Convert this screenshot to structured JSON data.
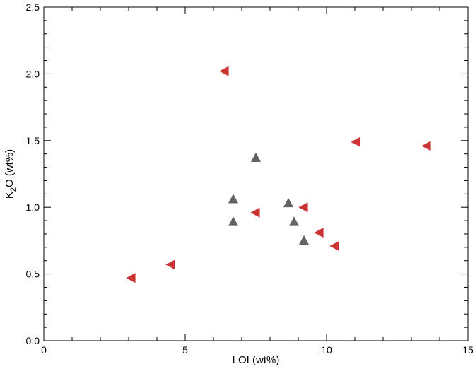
{
  "chart_data": {
    "type": "scatter",
    "title": "",
    "xlabel": "LOI (wt%)",
    "ylabel": {
      "prefix": "K",
      "subscript": "2",
      "suffix": "O (wt%)"
    },
    "xlim": [
      0,
      15
    ],
    "ylim": [
      0,
      2.5
    ],
    "x_ticks": [
      0,
      5,
      10,
      15
    ],
    "x_tick_labels": [
      "0",
      "5",
      "10",
      "15"
    ],
    "y_ticks": [
      0,
      0.5,
      1.0,
      1.5,
      2.0,
      2.5
    ],
    "y_tick_labels": [
      "0.0",
      "0.5",
      "1.0",
      "1.5",
      "2.0",
      "2.5"
    ],
    "grid": false,
    "legend": "none",
    "series": [
      {
        "marker": "triangle-up",
        "color": "#636363",
        "points": [
          {
            "x": 6.7,
            "y": 1.06
          },
          {
            "x": 6.7,
            "y": 0.89
          },
          {
            "x": 7.5,
            "y": 1.37
          },
          {
            "x": 8.65,
            "y": 1.03
          },
          {
            "x": 8.85,
            "y": 0.89
          },
          {
            "x": 9.2,
            "y": 0.75
          }
        ]
      },
      {
        "marker": "triangle-left",
        "color": "#cc3333",
        "points": [
          {
            "x": 3.1,
            "y": 0.47
          },
          {
            "x": 4.5,
            "y": 0.57
          },
          {
            "x": 6.4,
            "y": 2.02
          },
          {
            "x": 7.5,
            "y": 0.96
          },
          {
            "x": 9.2,
            "y": 1.0
          },
          {
            "x": 9.75,
            "y": 0.81
          },
          {
            "x": 10.3,
            "y": 0.71
          },
          {
            "x": 11.05,
            "y": 1.49
          },
          {
            "x": 13.55,
            "y": 1.46
          }
        ]
      }
    ]
  }
}
